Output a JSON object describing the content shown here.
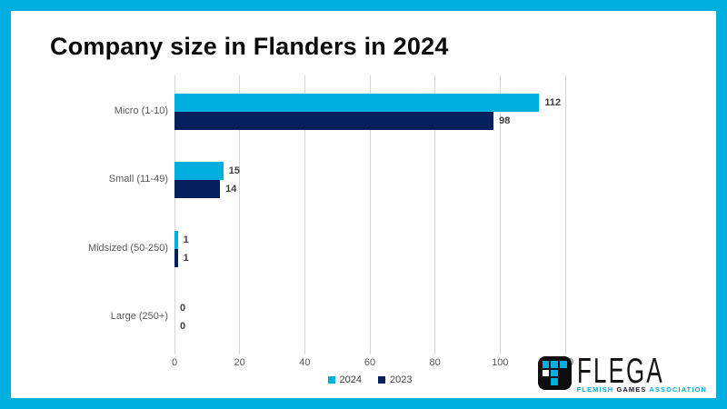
{
  "page": {
    "border_color": "#00AEDF",
    "background_color": "#ffffff"
  },
  "title": "Company size in Flanders in 2024",
  "chart_data": {
    "type": "bar",
    "orientation": "horizontal",
    "title": "Company size in Flanders in 2024",
    "categories": [
      "Micro (1-10)",
      "Small (11-49)",
      "Midsized (50-250)",
      "Large (250+)"
    ],
    "series": [
      {
        "name": "2024",
        "color": "#00AEDF",
        "values": [
          112,
          15,
          1,
          0
        ]
      },
      {
        "name": "2023",
        "color": "#06205E",
        "values": [
          98,
          14,
          1,
          0
        ]
      }
    ],
    "xlim": [
      0,
      120
    ],
    "xticks": [
      "0",
      "20",
      "40",
      "60",
      "80",
      "100",
      "120"
    ],
    "grid": true,
    "data_labels": true,
    "legend_position": "bottom",
    "gridline_color": "#d6d6d6",
    "label_color": "#595959",
    "value_label_color": "#404040"
  },
  "logo": {
    "brand": "FLEGA",
    "tagline": [
      "FLEMISH",
      "GAMES",
      "ASSOCIATION"
    ],
    "accent_color": "#00AEDF"
  }
}
